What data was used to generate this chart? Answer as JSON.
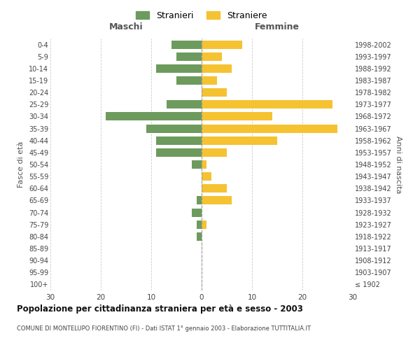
{
  "age_groups": [
    "100+",
    "95-99",
    "90-94",
    "85-89",
    "80-84",
    "75-79",
    "70-74",
    "65-69",
    "60-64",
    "55-59",
    "50-54",
    "45-49",
    "40-44",
    "35-39",
    "30-34",
    "25-29",
    "20-24",
    "15-19",
    "10-14",
    "5-9",
    "0-4"
  ],
  "birth_years": [
    "≤ 1902",
    "1903-1907",
    "1908-1912",
    "1913-1917",
    "1918-1922",
    "1923-1927",
    "1928-1932",
    "1933-1937",
    "1938-1942",
    "1943-1947",
    "1948-1952",
    "1953-1957",
    "1958-1962",
    "1963-1967",
    "1968-1972",
    "1973-1977",
    "1978-1982",
    "1983-1987",
    "1988-1992",
    "1993-1997",
    "1998-2002"
  ],
  "maschi": [
    0,
    0,
    0,
    0,
    1,
    1,
    2,
    1,
    0,
    0,
    2,
    9,
    9,
    11,
    19,
    7,
    0,
    5,
    9,
    5,
    6
  ],
  "femmine": [
    0,
    0,
    0,
    0,
    0,
    1,
    0,
    6,
    5,
    2,
    1,
    5,
    15,
    27,
    14,
    26,
    5,
    3,
    6,
    4,
    8
  ],
  "maschi_color": "#6d9b5e",
  "femmine_color": "#f5c232",
  "title": "Popolazione per cittadinanza straniera per età e sesso - 2003",
  "subtitle": "COMUNE DI MONTELUPO FIORENTINO (FI) - Dati ISTAT 1° gennaio 2003 - Elaborazione TUTTITALIA.IT",
  "xlabel_left": "Maschi",
  "xlabel_right": "Femmine",
  "ylabel_left": "Fasce di età",
  "ylabel_right": "Anni di nascita",
  "legend_male": "Stranieri",
  "legend_female": "Straniere",
  "xlim": 30,
  "background_color": "#ffffff",
  "grid_color": "#cccccc"
}
